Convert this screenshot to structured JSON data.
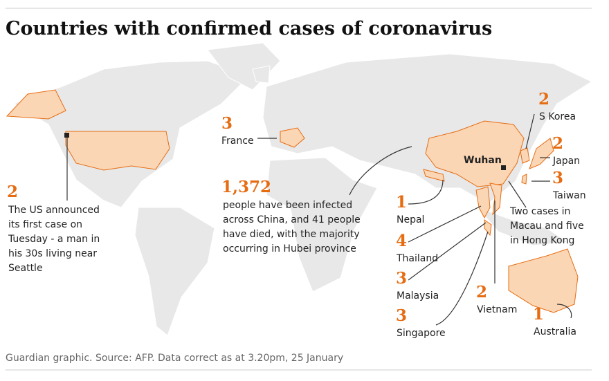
{
  "header": {
    "title": "Countries with confirmed cases of coronavirus"
  },
  "annotations": [
    {
      "count": 2,
      "note": [
        "The US announced",
        "its first case on",
        "Tuesday - a man in",
        "his 30s living near",
        "Seattle"
      ]
    },
    {
      "count": 3,
      "country": "France"
    },
    {
      "count": {
        "value": 1372,
        "label": "1,372"
      },
      "note": [
        "people have been infected",
        "across China, and 41 people",
        "have died, with the majority",
        "occurring in Hubei province"
      ]
    },
    {
      "count": 2,
      "country": "S Korea"
    },
    {
      "count": 2,
      "country": "Japan"
    },
    {
      "count": 3,
      "country": "Taiwan"
    },
    {
      "count": 1,
      "country": "Nepal"
    },
    {
      "count": 4,
      "country": "Thailand"
    },
    {
      "count": 3,
      "country": "Malaysia"
    },
    {
      "count": 3,
      "country": "Singapore"
    },
    {
      "count": 2,
      "country": "Vietnam"
    },
    {
      "count": 1,
      "country": "Australia"
    }
  ],
  "wuhan": "Wuhan",
  "hong_kong_note": [
    "Two cases in",
    "Macau and five",
    "in Hong Kong"
  ],
  "source": "Guardian graphic. Source: AFP. Data correct as at 3.20pm, 25 January"
}
